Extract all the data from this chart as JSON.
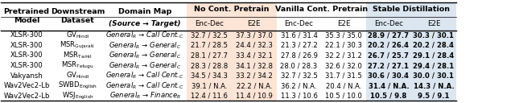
{
  "rows": [
    [
      "XLSR-300",
      "GV",
      "Hindi",
      "General",
      "R",
      " → Call Cent.",
      "C",
      "32.7 / 32.5",
      "37.3 / 37.0",
      "31.6 / 31.4",
      "35.3 / 35.0",
      "28.9 / 27.7",
      "30.3 / 30.1"
    ],
    [
      "XLSR-300",
      "MSR",
      "Gujarati",
      "General",
      "R",
      " → General",
      "C",
      "21.7 / 28.5",
      "24.4 / 32.3",
      "21.3 / 27.2",
      "22.1 / 30.3",
      "20.2 / 26.4",
      "20.2 / 28.4"
    ],
    [
      "XLSR-300",
      "MSR",
      "Tamil",
      "General",
      "R",
      " → General",
      "C",
      "28.1 / 27.7",
      "33.4 / 32.1",
      "27.8 / 26.9",
      "32.2 / 31.2",
      "26.7 / 25.7",
      "29.1 / 28.4"
    ],
    [
      "XLSR-300",
      "MSR",
      "Telugu",
      "General",
      "R",
      " → General",
      "C",
      "28.3 / 28.8",
      "34.1 / 32.8",
      "28.0 / 28.3",
      "32.6 / 32.0",
      "27.2 / 27.1",
      "29.4 / 28.1"
    ],
    [
      "Vakyansh",
      "GV",
      "Hindi",
      "General",
      "R",
      " → Call Cent.",
      "C",
      "34.5 / 34.3",
      "33.2 / 34.2",
      "32.7 / 32.5",
      "31.7 / 31.5",
      "30.6 / 30.4",
      "30.0 / 30.1"
    ],
    [
      "Wav2Vec2-Lb",
      "SWBD",
      "English",
      "General",
      "R",
      " → Call Cent.",
      "C",
      "39.1 / N.A.",
      "22.2 / N.A.",
      "36.2 / N.A.",
      "20.4 / N.A.",
      "31.4 / N.A.",
      "14.3 / N.A."
    ],
    [
      "Wav2Vec2-Lb",
      "WSJ",
      "English",
      "General",
      "R",
      " → Finance",
      "R",
      "12.4 / 11.6",
      "11.4 / 10.9",
      "11.3 / 10.6",
      "10.5 / 10.0",
      "10.5 / 9.8",
      "9.5 / 9.1"
    ]
  ],
  "bg_no_cont": "#fce4d6",
  "bg_vanilla": "#ffffff",
  "bg_stable": "#dce6f1",
  "bg_white": "#ffffff",
  "figsize": [
    6.4,
    1.28
  ],
  "dpi": 100
}
